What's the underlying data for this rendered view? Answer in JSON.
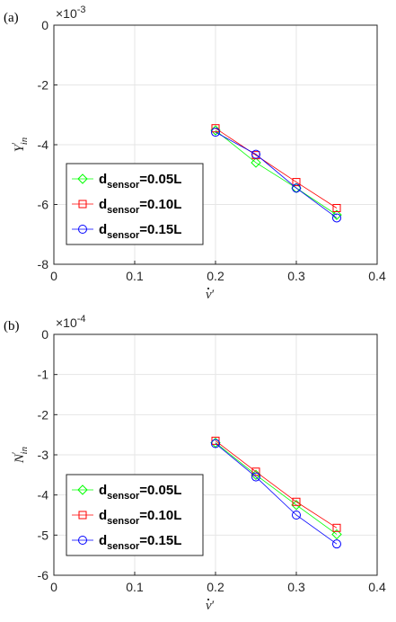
{
  "chart_data": [
    {
      "type": "line",
      "panel_label": "(a)",
      "exponent": "×10",
      "exponent_power": "-3",
      "x": [
        0.2,
        0.25,
        0.3,
        0.35
      ],
      "xlim": [
        0,
        0.4
      ],
      "ylim": [
        -8,
        0
      ],
      "xticks": [
        "0",
        "0.1",
        "0.2",
        "0.3",
        "0.4"
      ],
      "yticks": [
        "0",
        "-2",
        "-4",
        "-6",
        "-8"
      ],
      "xlabel_main": "v",
      "xlabel_sup": "′",
      "ylabel_main": "Y",
      "ylabel_sup": "′",
      "ylabel_sub": "in",
      "grid": true,
      "legend_position": "bottom-left",
      "series": [
        {
          "legend_main": "d",
          "legend_sub": "sensor",
          "legend_tail": "=0.05L",
          "color": "#00ff00",
          "marker": "diamond",
          "values": [
            -3.52,
            -4.6,
            -5.45,
            -6.35
          ]
        },
        {
          "legend_main": "d",
          "legend_sub": "sensor",
          "legend_tail": "=0.10L",
          "color": "#ff0000",
          "marker": "square",
          "values": [
            -3.45,
            -4.35,
            -5.25,
            -6.12
          ]
        },
        {
          "legend_main": "d",
          "legend_sub": "sensor",
          "legend_tail": "=0.15L",
          "color": "#0000ff",
          "marker": "circle",
          "values": [
            -3.58,
            -4.32,
            -5.45,
            -6.45
          ]
        }
      ]
    },
    {
      "type": "line",
      "panel_label": "(b)",
      "exponent": "×10",
      "exponent_power": "-4",
      "x": [
        0.2,
        0.25,
        0.3,
        0.35
      ],
      "xlim": [
        0,
        0.4
      ],
      "ylim": [
        -6,
        0
      ],
      "xticks": [
        "0",
        "0.1",
        "0.2",
        "0.3",
        "0.4"
      ],
      "yticks": [
        "0",
        "-1",
        "-2",
        "-3",
        "-4",
        "-5",
        "-6"
      ],
      "xlabel_main": "v",
      "xlabel_sup": "′",
      "ylabel_main": "N",
      "ylabel_sup": "′",
      "ylabel_sub": "in",
      "grid": true,
      "legend_position": "bottom-left",
      "series": [
        {
          "legend_main": "d",
          "legend_sub": "sensor",
          "legend_tail": "=0.05L",
          "color": "#00ff00",
          "marker": "diamond",
          "values": [
            -2.7,
            -3.5,
            -4.25,
            -4.98
          ]
        },
        {
          "legend_main": "d",
          "legend_sub": "sensor",
          "legend_tail": "=0.10L",
          "color": "#ff0000",
          "marker": "square",
          "values": [
            -2.65,
            -3.42,
            -4.17,
            -4.82
          ]
        },
        {
          "legend_main": "d",
          "legend_sub": "sensor",
          "legend_tail": "=0.15L",
          "color": "#0000ff",
          "marker": "circle",
          "values": [
            -2.72,
            -3.55,
            -4.5,
            -5.22
          ]
        }
      ]
    }
  ]
}
